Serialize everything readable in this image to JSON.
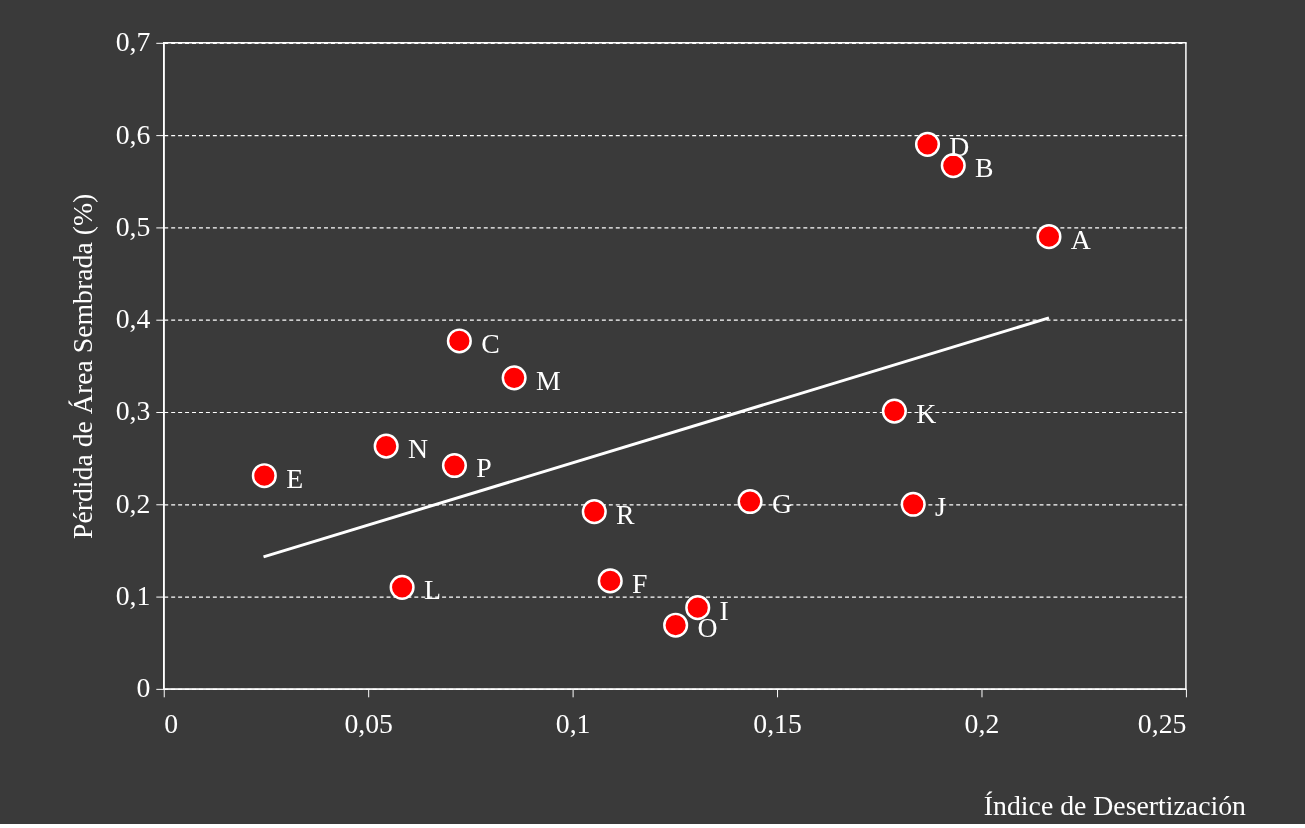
{
  "chart_data": {
    "type": "scatter",
    "xlabel": "Índice de Desertización",
    "ylabel": "Pérdida de Área Sembrada (%)",
    "series": [
      {
        "marker": "circle",
        "color": "#ff0000",
        "x": [
          0.0246,
          0.0544,
          0.0583,
          0.0711,
          0.0723,
          0.0857,
          0.1053,
          0.1092,
          0.1252,
          0.1306,
          0.1434,
          0.1787,
          0.1833,
          0.1868,
          0.1931,
          0.2165
        ],
        "values": [
          0.231,
          0.263,
          0.11,
          0.242,
          0.377,
          0.337,
          0.192,
          0.117,
          0.069,
          0.088,
          0.203,
          0.301,
          0.2,
          0.59,
          0.567,
          0.49
        ]
      },
      {
        "type": "line",
        "marker": "none",
        "line_style": "solid",
        "color": "#ffffff",
        "x": [
          0.0244,
          0.2165
        ],
        "values": [
          0.143,
          0.402
        ]
      }
    ],
    "annotations": [
      {
        "text": "E",
        "x": 0.0246,
        "y": 0.231
      },
      {
        "text": "N",
        "x": 0.0544,
        "y": 0.263
      },
      {
        "text": "L",
        "x": 0.0583,
        "y": 0.11
      },
      {
        "text": "P",
        "x": 0.0711,
        "y": 0.242
      },
      {
        "text": "C",
        "x": 0.0723,
        "y": 0.377
      },
      {
        "text": "M",
        "x": 0.0857,
        "y": 0.337
      },
      {
        "text": "R",
        "x": 0.1053,
        "y": 0.192
      },
      {
        "text": "F",
        "x": 0.1092,
        "y": 0.117
      },
      {
        "text": "O",
        "x": 0.1252,
        "y": 0.069
      },
      {
        "text": "I",
        "x": 0.1306,
        "y": 0.088
      },
      {
        "text": "G",
        "x": 0.1434,
        "y": 0.203
      },
      {
        "text": "K",
        "x": 0.1787,
        "y": 0.301
      },
      {
        "text": "J",
        "x": 0.1833,
        "y": 0.2
      },
      {
        "text": "D",
        "x": 0.1868,
        "y": 0.59
      },
      {
        "text": "B",
        "x": 0.1931,
        "y": 0.567
      },
      {
        "text": "A",
        "x": 0.2165,
        "y": 0.49
      }
    ],
    "xlim": [
      0,
      0.25
    ],
    "ylim": [
      0,
      0.7
    ],
    "xticks": [
      0,
      {
        "value": 0.05,
        "label": "0,05"
      },
      {
        "value": 0.1,
        "label": "0,1"
      },
      {
        "value": 0.15,
        "label": "0,15"
      },
      {
        "value": 0.2,
        "label": "0,2"
      },
      {
        "value": 0.25,
        "label": "0,25"
      }
    ],
    "yticks": [
      0,
      {
        "value": 0.1,
        "label": "0,1"
      },
      {
        "value": 0.2,
        "label": "0,2"
      },
      {
        "value": 0.3,
        "label": "0,3"
      },
      {
        "value": 0.4,
        "label": "0,4"
      },
      {
        "value": 0.5,
        "label": "0,5"
      },
      {
        "value": 0.6,
        "label": "0,6"
      },
      {
        "value": 0.7,
        "label": "0,7"
      }
    ],
    "grid": "y"
  }
}
